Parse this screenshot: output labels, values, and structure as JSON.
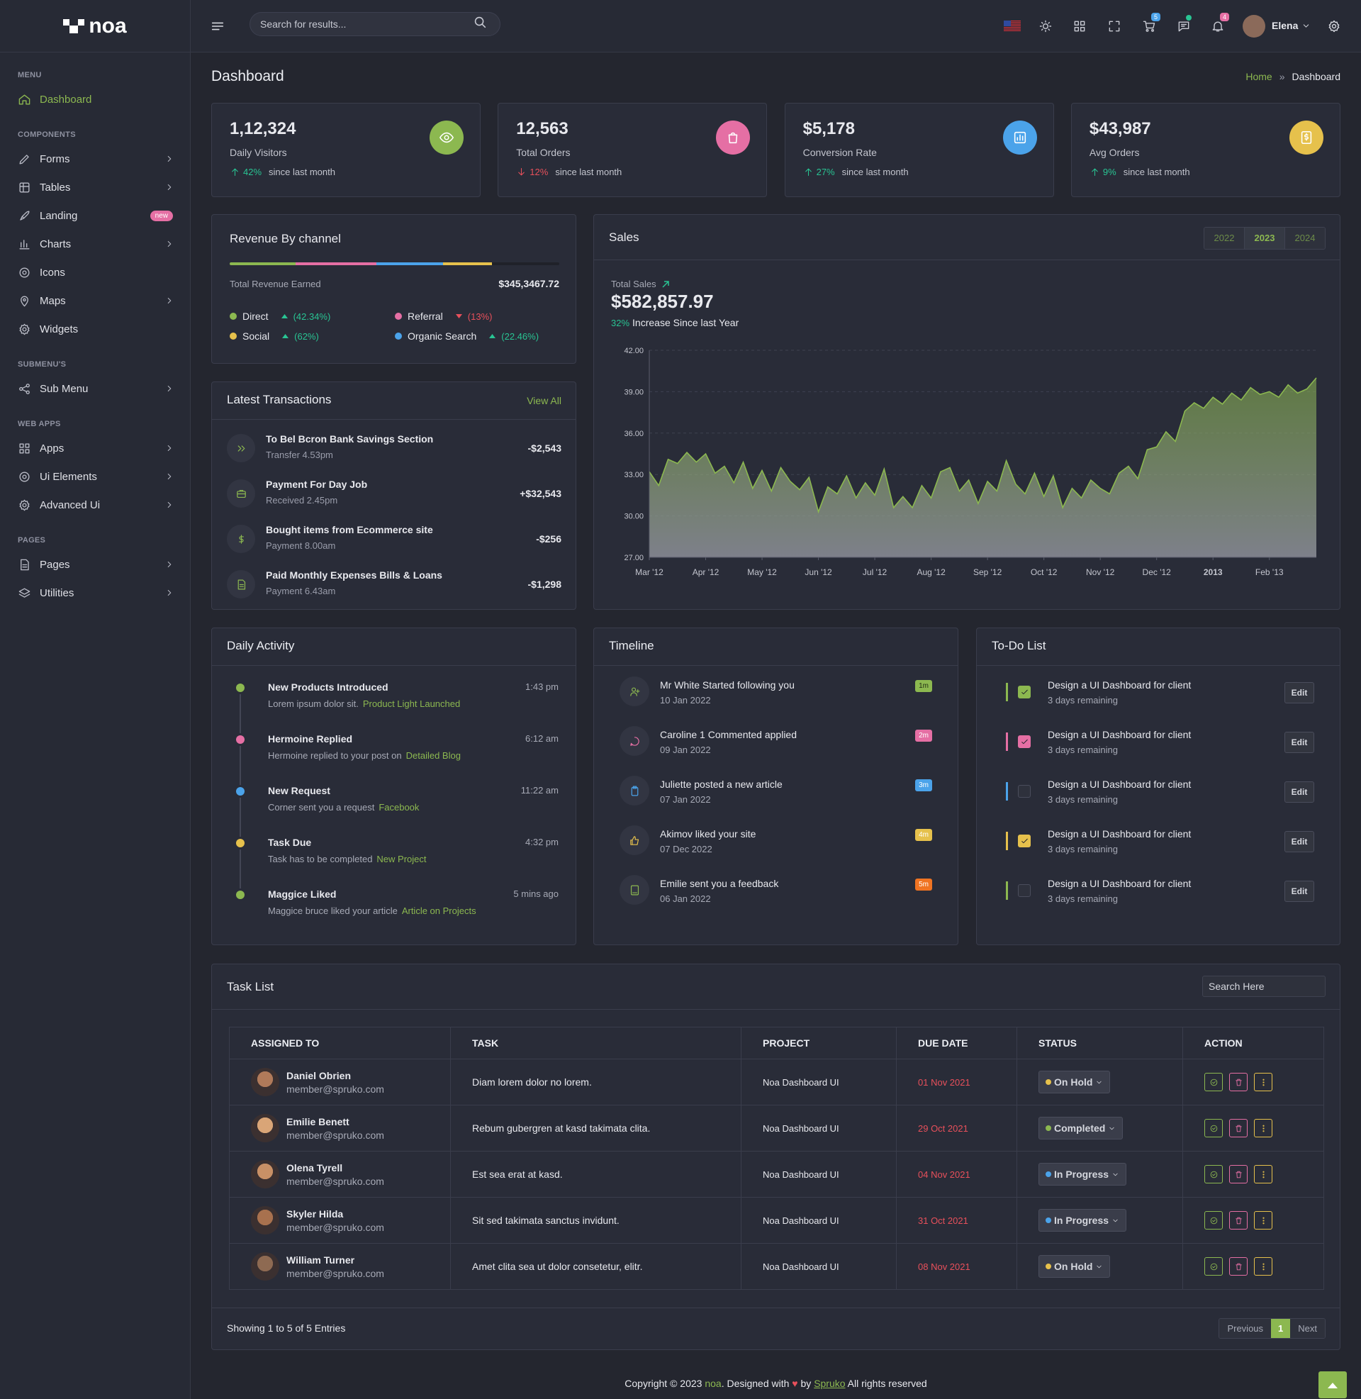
{
  "header": {
    "search_placeholder": "Search for results...",
    "cart_badge": "5",
    "notification_badge": "4",
    "user": "Elena"
  },
  "sidebar": {
    "logo": "noa",
    "sections": [
      {
        "title": "MENU",
        "items": [
          {
            "label": "Dashboard",
            "active": true
          }
        ]
      },
      {
        "title": "COMPONENTS",
        "items": [
          {
            "label": "Forms",
            "arrow": true
          },
          {
            "label": "Tables",
            "arrow": true
          },
          {
            "label": "Landing",
            "badge": "new"
          },
          {
            "label": "Charts",
            "arrow": true
          },
          {
            "label": "Icons"
          },
          {
            "label": "Maps",
            "arrow": true
          },
          {
            "label": "Widgets"
          }
        ]
      },
      {
        "title": "SUBMENU'S",
        "items": [
          {
            "label": "Sub Menu",
            "arrow": true
          }
        ]
      },
      {
        "title": "WEB APPS",
        "items": [
          {
            "label": "Apps",
            "arrow": true
          },
          {
            "label": "Ui Elements",
            "arrow": true
          },
          {
            "label": "Advanced Ui",
            "arrow": true
          }
        ]
      },
      {
        "title": "PAGES",
        "items": [
          {
            "label": "Pages",
            "arrow": true
          },
          {
            "label": "Utilities",
            "arrow": true
          }
        ]
      }
    ]
  },
  "page": {
    "title": "Dashboard",
    "breadcrumb": [
      "Home",
      "Dashboard"
    ]
  },
  "stats": [
    {
      "value": "1,12,324",
      "label": "Daily Visitors",
      "change": "42%",
      "direction": "up",
      "note": "since last month",
      "color": "#8cb850"
    },
    {
      "value": "12,563",
      "label": "Total Orders",
      "change": "12%",
      "direction": "down",
      "note": "since last month",
      "color": "#e56fa4"
    },
    {
      "value": "$5,178",
      "label": "Conversion Rate",
      "change": "27%",
      "direction": "up",
      "note": "since last month",
      "color": "#4ba3ea"
    },
    {
      "value": "$43,987",
      "label": "Avg Orders",
      "change": "9%",
      "direction": "up",
      "note": "since last month",
      "color": "#e6c14c"
    }
  ],
  "revenue": {
    "title": "Revenue By channel",
    "total_label": "Total Revenue Earned",
    "total": "$345,3467.72",
    "channels": [
      {
        "name": "Direct",
        "change": "(42.34%)",
        "direction": "up",
        "color": "#8cb850"
      },
      {
        "name": "Referral",
        "change": "(13%)",
        "direction": "down",
        "color": "#e56fa4"
      },
      {
        "name": "Social",
        "change": "(62%)",
        "direction": "up",
        "color": "#e6c14c"
      },
      {
        "name": "Organic Search",
        "change": "(22.46%)",
        "direction": "up",
        "color": "#4ba3ea"
      }
    ]
  },
  "transactions": {
    "title": "Latest Transactions",
    "view_all": "View All",
    "items": [
      {
        "title": "To Bel Bcron Bank Savings Section",
        "sub": "Transfer 4.53pm",
        "amount": "-$2,543"
      },
      {
        "title": "Payment For  Day Job",
        "sub": "Received 2.45pm",
        "amount": "+$32,543"
      },
      {
        "title": "Bought items from Ecommerce site",
        "sub": "Payment 8.00am",
        "amount": "-$256"
      },
      {
        "title": "Paid Monthly Expenses Bills & Loans",
        "sub": "Payment 6.43am",
        "amount": "-$1,298"
      }
    ]
  },
  "chart_data": {
    "type": "area",
    "title": "Sales",
    "years": [
      {
        "label": "2022"
      },
      {
        "label": "2023",
        "selected": true
      },
      {
        "label": "2024"
      }
    ],
    "total_label": "Total Sales",
    "total": "$582,857.97",
    "growth": "32%",
    "growth_note": "Increase Since last Year",
    "color": "#8cb850",
    "grid": true,
    "values": [
      33.2,
      32.2,
      34.1,
      33.8,
      34.6,
      33.9,
      34.5,
      33.1,
      33.6,
      32.4,
      33.9,
      32.0,
      33.3,
      31.8,
      33.5,
      32.5,
      31.9,
      32.8,
      30.3,
      32.1,
      31.6,
      32.9,
      31.3,
      32.4,
      31.5,
      33.4,
      30.6,
      31.4,
      30.6,
      32.2,
      31.3,
      33.2,
      33.5,
      31.8,
      32.6,
      30.9,
      32.5,
      31.8,
      34.0,
      32.3,
      31.6,
      33.1,
      31.4,
      32.9,
      30.6,
      32.0,
      31.3,
      32.6,
      32.0,
      31.6,
      33.1,
      33.6,
      32.7,
      34.8,
      35.0,
      36.1,
      35.4,
      37.6,
      38.2,
      37.8,
      38.6,
      38.1,
      38.9,
      38.4,
      39.3,
      38.8,
      39.0,
      38.6,
      39.5,
      38.9,
      39.2,
      40.0
    ],
    "xlim": [
      0,
      71
    ],
    "xticks": [
      {
        "value": 0,
        "label": "Mar '12"
      },
      {
        "value": 6,
        "label": "Apr '12"
      },
      {
        "value": 12,
        "label": "May '12"
      },
      {
        "value": 18,
        "label": "Jun '12"
      },
      {
        "value": 24,
        "label": "Jul '12"
      },
      {
        "value": 30,
        "label": "Aug '12"
      },
      {
        "value": 36,
        "label": "Sep '12"
      },
      {
        "value": 42,
        "label": "Oct '12"
      },
      {
        "value": 48,
        "label": "Nov '12"
      },
      {
        "value": 54,
        "label": "Dec '12"
      },
      {
        "value": 60,
        "label": "2013"
      },
      {
        "value": 66,
        "label": "Feb '13"
      }
    ],
    "ylim": [
      27,
      42
    ],
    "yticks": [
      {
        "value": 27,
        "label": "27.00"
      },
      {
        "value": 30,
        "label": "30.00"
      },
      {
        "value": 33,
        "label": "33.00"
      },
      {
        "value": 36,
        "label": "36.00"
      },
      {
        "value": 39,
        "label": "39.00"
      },
      {
        "value": 42,
        "label": "42.00"
      }
    ]
  },
  "activity": {
    "title": "Daily Activity",
    "items": [
      {
        "title": "New Products Introduced",
        "time": "1:43 pm",
        "text": "Lorem ipsum dolor sit.",
        "link": "Product Light Launched",
        "color": "#8cb850"
      },
      {
        "title": "Hermoine Replied",
        "time": "6:12 am",
        "text": "Hermoine replied to your post on",
        "link": "Detailed Blog",
        "color": "#e56fa4"
      },
      {
        "title": "New Request",
        "time": "11:22 am",
        "text": "Corner sent you a request",
        "link": "Facebook",
        "color": "#4ba3ea"
      },
      {
        "title": "Task Due",
        "time": "4:32 pm",
        "text": "Task has to be completed",
        "link": "New Project",
        "color": "#e6c14c"
      },
      {
        "title": "Maggice Liked",
        "time": "5 mins ago",
        "text": "Maggice bruce liked your article",
        "link": "Article on Projects",
        "color": "#8cb850"
      }
    ]
  },
  "timeline": {
    "title": "Timeline",
    "items": [
      {
        "text": "Mr White Started following you",
        "date": "10 Jan 2022",
        "badge": "1m",
        "color": "#8cb850"
      },
      {
        "text": "Caroline 1 Commented applied",
        "date": "09 Jan 2022",
        "badge": "2m",
        "color": "#e56fa4"
      },
      {
        "text": "Juliette posted a new article",
        "date": "07 Jan 2022",
        "badge": "3m",
        "color": "#4ba3ea"
      },
      {
        "text": "Akimov liked your site",
        "date": "07 Dec 2022",
        "badge": "4m",
        "color": "#e6c14c"
      },
      {
        "text": "Emilie sent you a feedback",
        "date": "06 Jan 2022",
        "badge": "5m",
        "color": "#f07422"
      }
    ]
  },
  "todo": {
    "title": "To-Do List",
    "edit_label": "Edit",
    "items": [
      {
        "text": "Design a UI Dashboard for client",
        "sub": "3 days remaining",
        "checked": true,
        "color": "#8cb850"
      },
      {
        "text": "Design a UI Dashboard for client",
        "sub": "3 days remaining",
        "checked": true,
        "color": "#e56fa4"
      },
      {
        "text": "Design a UI Dashboard for client",
        "sub": "3 days remaining",
        "checked": false,
        "color": "#4ba3ea"
      },
      {
        "text": "Design a UI Dashboard for client",
        "sub": "3 days remaining",
        "checked": true,
        "color": "#e6c14c"
      },
      {
        "text": "Design a UI Dashboard for client",
        "sub": "3 days remaining",
        "checked": false,
        "color": "#8cb850"
      }
    ]
  },
  "tasks": {
    "title": "Task List",
    "search_placeholder": "Search Here",
    "columns": [
      "ASSIGNED TO",
      "TASK",
      "PROJECT",
      "DUE DATE",
      "STATUS",
      "ACTION"
    ],
    "rows": [
      {
        "name": "Daniel Obrien",
        "email": "member@spruko.com",
        "task": "Diam lorem dolor no lorem.",
        "project": "Noa Dashboard UI",
        "due": "01 Nov 2021",
        "status": "On Hold",
        "status_color": "#e6c14c"
      },
      {
        "name": "Emilie Benett",
        "email": "member@spruko.com",
        "task": "Rebum gubergren at kasd takimata clita.",
        "project": "Noa Dashboard UI",
        "due": "29 Oct 2021",
        "status": "Completed",
        "status_color": "#8cb850"
      },
      {
        "name": "Olena Tyrell",
        "email": "member@spruko.com",
        "task": "Est sea erat at kasd.",
        "project": "Noa Dashboard UI",
        "due": "04 Nov 2021",
        "status": "In Progress",
        "status_color": "#4ba3ea"
      },
      {
        "name": "Skyler Hilda",
        "email": "member@spruko.com",
        "task": "Sit sed takimata sanctus invidunt.",
        "project": "Noa Dashboard UI",
        "due": "31 Oct 2021",
        "status": "In Progress",
        "status_color": "#4ba3ea"
      },
      {
        "name": "William Turner",
        "email": "member@spruko.com",
        "task": "Amet clita sea ut dolor consetetur, elitr.",
        "project": "Noa Dashboard UI",
        "due": "08 Nov 2021",
        "status": "On Hold",
        "status_color": "#e6c14c"
      }
    ],
    "summary": "Showing 1 to 5 of 5 Entries",
    "pagination": [
      "Previous",
      "1",
      "Next"
    ]
  },
  "footer": {
    "copyright": "Copyright © 2023",
    "brand": "noa",
    "designed": ". Designed with",
    "by": "by",
    "company": "Spruko",
    "rights": "All rights reserved"
  }
}
